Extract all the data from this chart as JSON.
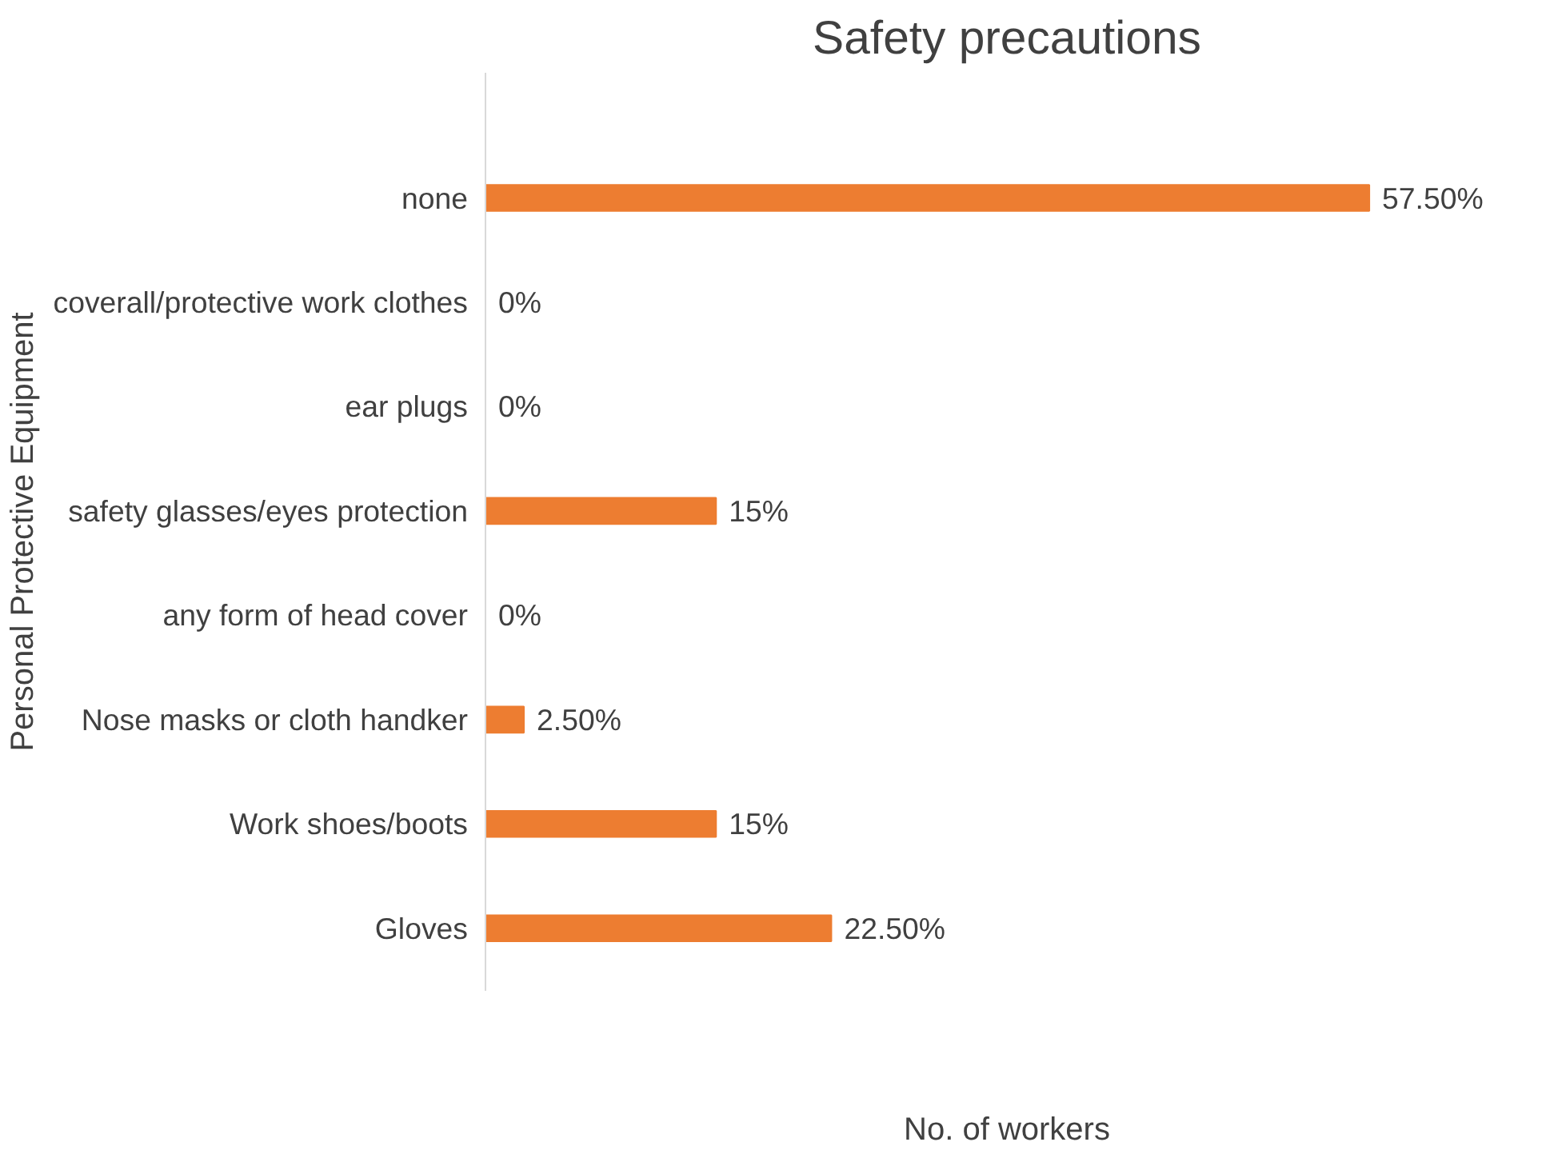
{
  "chart_data": {
    "type": "bar",
    "orientation": "horizontal",
    "title": "Safety precautions",
    "xlabel": "No. of workers",
    "ylabel": "Personal Protective Equipment",
    "categories": [
      "none",
      "coverall/protective work clothes",
      "ear plugs",
      "safety glasses/eyes protection",
      "any form of head cover",
      "Nose masks or cloth handker",
      "Work shoes/boots",
      "Gloves"
    ],
    "values": [
      57.5,
      0,
      0,
      15,
      0,
      2.5,
      15,
      22.5
    ],
    "value_labels": [
      "57.50%",
      "0%",
      "0%",
      "15%",
      "0%",
      "2.50%",
      "15%",
      "22.50%"
    ],
    "color": "#ed7d31",
    "grid": false
  }
}
